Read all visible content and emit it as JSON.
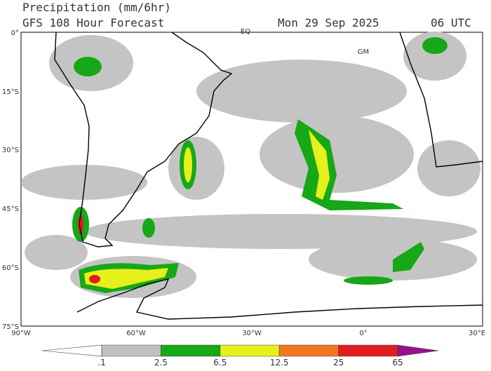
{
  "header": {
    "title": "Precipitation (mm/6hr)",
    "subtitle": "GFS 108 Hour Forecast",
    "date": "Mon 29 Sep 2025",
    "time": "06 UTC"
  },
  "map": {
    "lat_labels": [
      "0°",
      "15°S",
      "30°S",
      "45°S",
      "60°S",
      "75°S"
    ],
    "lon_labels": [
      "90°W",
      "60°W",
      "30°W",
      "0°",
      "30°E"
    ],
    "annotations": [
      "EQ",
      "GM"
    ]
  },
  "legend": {
    "labels": [
      ".1",
      "2.5",
      "6.5",
      "12.5",
      "25",
      "65"
    ],
    "colors": [
      "#ffffff",
      "#c0c0c0",
      "#16a816",
      "#e6f01a",
      "#f0781e",
      "#e01e1e",
      "#98108c"
    ]
  }
}
